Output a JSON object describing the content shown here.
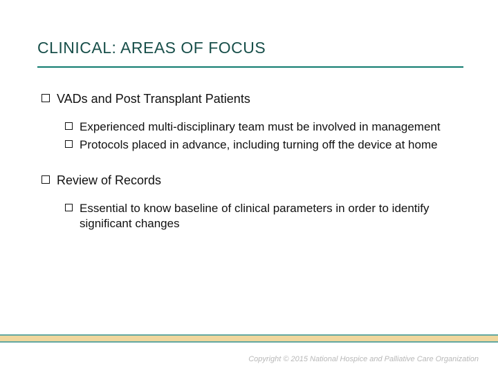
{
  "colors": {
    "title_color": "#184f4a",
    "underline_color": "#0f7a6e",
    "band_fill": "#e9c36a",
    "band_border": "#0f7a6e",
    "copyright_color": "#b8b8b8",
    "text_color": "#111111",
    "background": "#ffffff"
  },
  "title": "CLINICAL: AREAS OF FOCUS",
  "sections": [
    {
      "heading": "VADs and Post Transplant Patients",
      "bullets": [
        "Experienced multi-disciplinary team must be involved in management",
        "Protocols placed in advance, including turning off the device at home"
      ]
    },
    {
      "heading": "Review of Records",
      "bullets": [
        "Essential to know baseline of clinical parameters in order to identify significant changes"
      ]
    }
  ],
  "copyright": "Copyright © 2015 National Hospice and Palliative Care Organization"
}
